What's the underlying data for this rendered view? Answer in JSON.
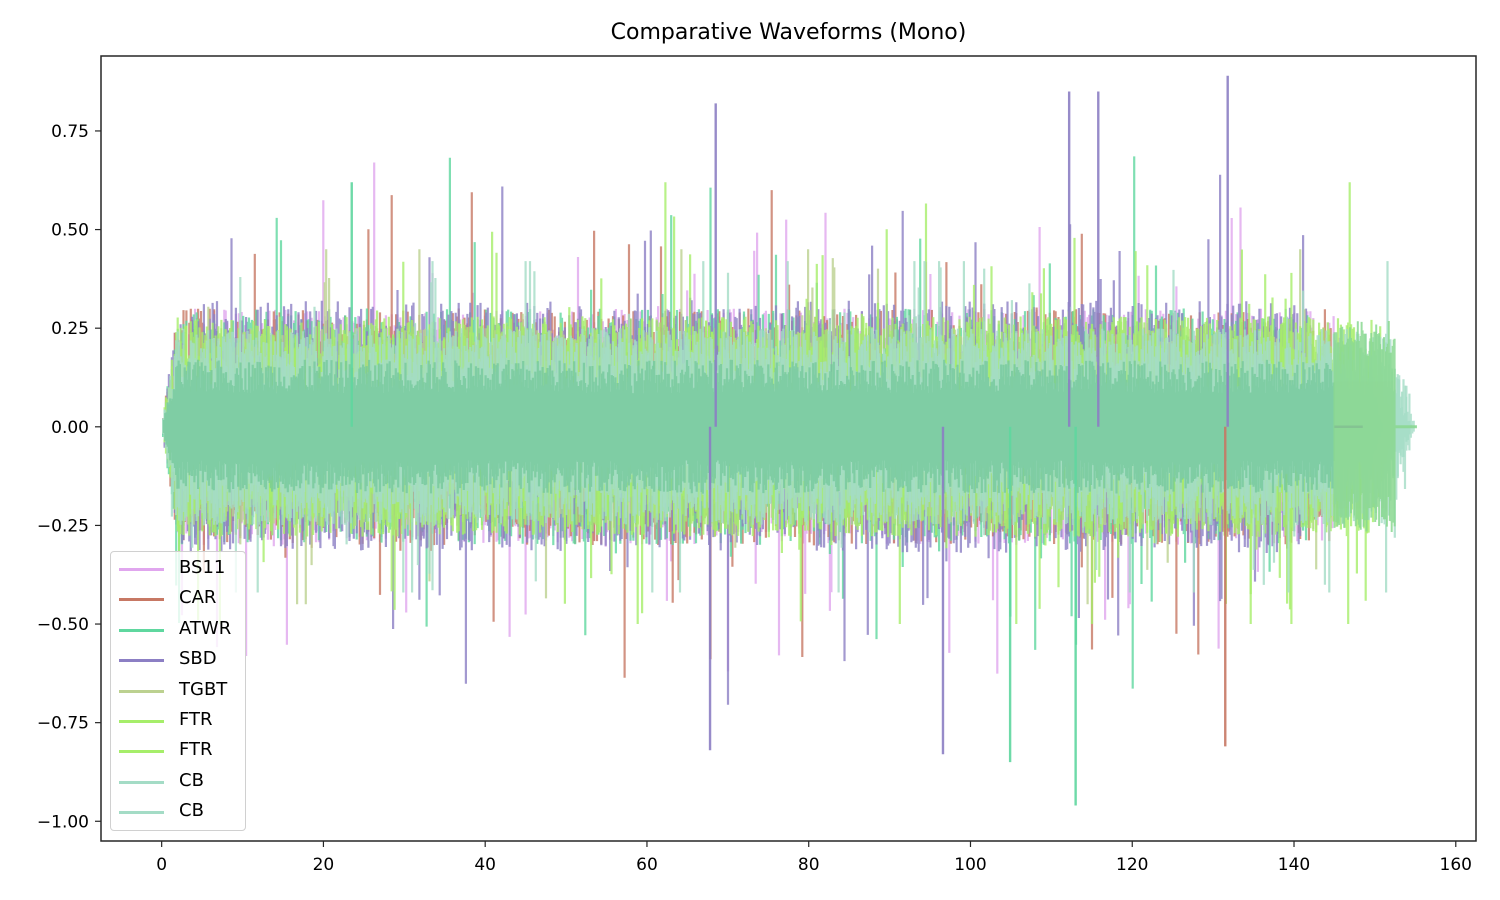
{
  "chart_data": {
    "type": "line",
    "title": "Comparative Waveforms (Mono)",
    "xlabel": "",
    "ylabel": "",
    "xlim": [
      -7.5,
      162.5
    ],
    "ylim": [
      -1.05,
      0.94
    ],
    "x_ticks": [
      0,
      20,
      40,
      60,
      80,
      100,
      120,
      140,
      160
    ],
    "x_tick_labels": [
      "0",
      "20",
      "40",
      "60",
      "80",
      "100",
      "120",
      "140",
      "160"
    ],
    "y_ticks": [
      0.75,
      0.5,
      0.25,
      0.0,
      -0.25,
      -0.5,
      -0.75,
      -1.0
    ],
    "y_tick_labels": [
      "0.75",
      "0.50",
      "0.25",
      "0.00",
      "−0.25",
      "−0.50",
      "−0.75",
      "−1.00"
    ],
    "grid": false,
    "legend_position": "lower left",
    "series": [
      {
        "name": "BS11",
        "color": "#e0a6ee",
        "x_end": 148.0,
        "typical_amplitude": 0.3,
        "max": 0.67,
        "min": -0.73
      },
      {
        "name": "CAR",
        "color": "#c77864",
        "x_end": 147.5,
        "typical_amplitude": 0.3,
        "max": 0.6,
        "min": -0.81
      },
      {
        "name": "ATWR",
        "color": "#5fd79f",
        "x_end": 145.5,
        "typical_amplitude": 0.3,
        "max": 0.76,
        "min": -0.96
      },
      {
        "name": "SBD",
        "color": "#8c7fc4",
        "x_end": 144.5,
        "typical_amplitude": 0.32,
        "max": 0.89,
        "min": -0.83
      },
      {
        "name": "TGBT",
        "color": "#bcd190",
        "x_end": 146.0,
        "typical_amplitude": 0.25,
        "max": 0.45,
        "min": -0.45
      },
      {
        "name": "FTR",
        "color": "#a6ee6a",
        "x_end": 151.0,
        "typical_amplitude": 0.28,
        "max": 0.62,
        "min": -0.5
      },
      {
        "name": "FTR",
        "color": "#a6ee6a",
        "x_end": 152.5,
        "typical_amplitude": 0.28,
        "max": 0.56,
        "min": -0.5
      },
      {
        "name": "CB",
        "color": "#a4dcc6",
        "x_end": 154.5,
        "typical_amplitude": 0.25,
        "max": 0.42,
        "min": -0.42
      },
      {
        "name": "CB",
        "color": "#a4dcc6",
        "x_end": 155.0,
        "typical_amplitude": 0.25,
        "max": 0.42,
        "min": -0.42
      }
    ],
    "notable_peaks": [
      {
        "series": "SBD",
        "x": 131.8,
        "y": 0.89
      },
      {
        "series": "SBD",
        "x": 112.2,
        "y": 0.85
      },
      {
        "series": "SBD",
        "x": 115.8,
        "y": 0.85
      },
      {
        "series": "SBD",
        "x": 68.5,
        "y": 0.82
      },
      {
        "series": "ATWR",
        "x": 113.0,
        "y": -0.96
      },
      {
        "series": "ATWR",
        "x": 104.9,
        "y": -0.85
      },
      {
        "series": "SBD",
        "x": 96.6,
        "y": -0.83
      },
      {
        "series": "CAR",
        "x": 131.5,
        "y": -0.81
      },
      {
        "series": "SBD",
        "x": 67.8,
        "y": -0.82
      },
      {
        "series": "ATWR",
        "x": 23.5,
        "y": 0.62
      }
    ]
  },
  "legend": {
    "items": [
      {
        "label": "BS11",
        "color": "#e0a6ee"
      },
      {
        "label": "CAR",
        "color": "#c77864"
      },
      {
        "label": "ATWR",
        "color": "#5fd79f"
      },
      {
        "label": "SBD",
        "color": "#8c7fc4"
      },
      {
        "label": "TGBT",
        "color": "#bcd190"
      },
      {
        "label": "FTR",
        "color": "#a6ee6a"
      },
      {
        "label": "FTR",
        "color": "#a6ee6a"
      },
      {
        "label": "CB",
        "color": "#a4dcc6"
      },
      {
        "label": "CB",
        "color": "#a4dcc6"
      }
    ]
  }
}
